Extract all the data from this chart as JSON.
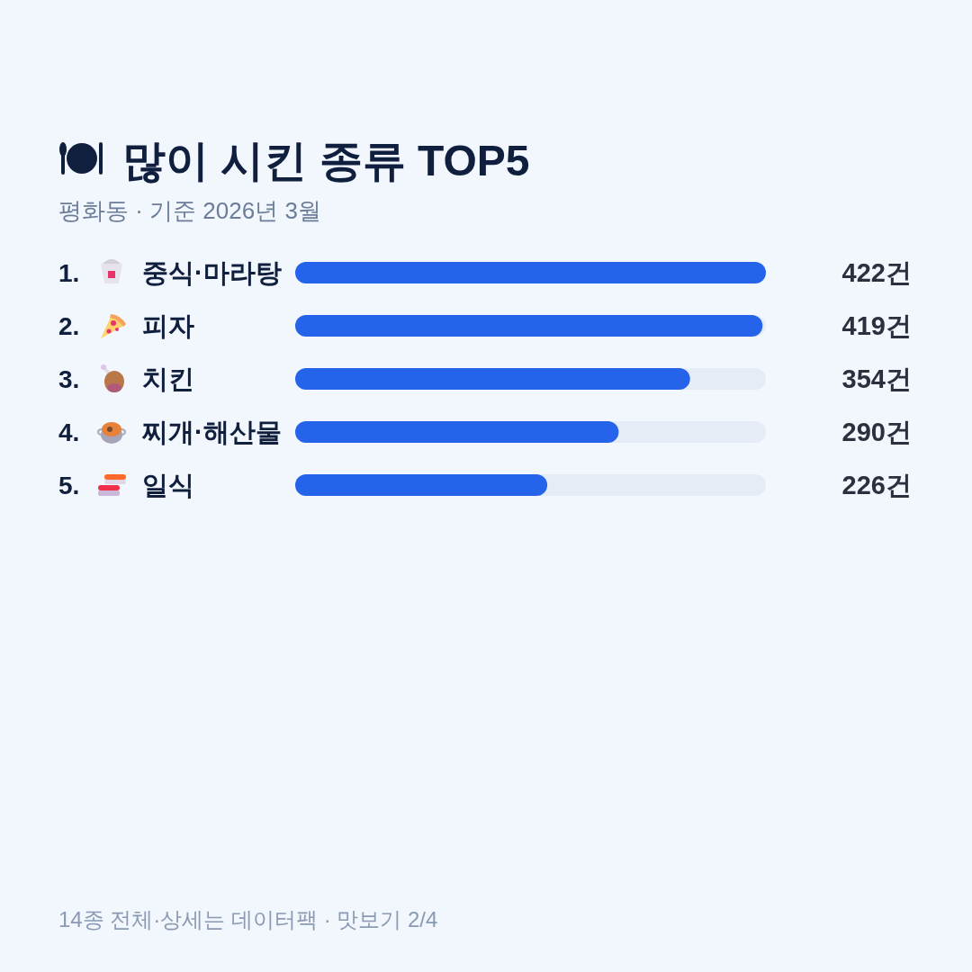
{
  "chart_data": {
    "type": "bar",
    "orientation": "horizontal",
    "title": "많이 시킨 종류 TOP5",
    "subtitle": "평화동 · 기준 2026년 3월",
    "categories": [
      "1. 중식·마라탕",
      "2. 피자",
      "3. 치킨",
      "4. 찌개·해산물",
      "5. 일식"
    ],
    "values": [
      422,
      419,
      354,
      290,
      226
    ],
    "value_labels": [
      "422건",
      "419건",
      "354건",
      "290건",
      "226건"
    ],
    "color": "#2563eb",
    "xlim": [
      0,
      422
    ],
    "tick_labels": "y",
    "annotations": [
      "14종 전체·상세는 데이터팩 · 맛보기 2/4"
    ]
  }
}
